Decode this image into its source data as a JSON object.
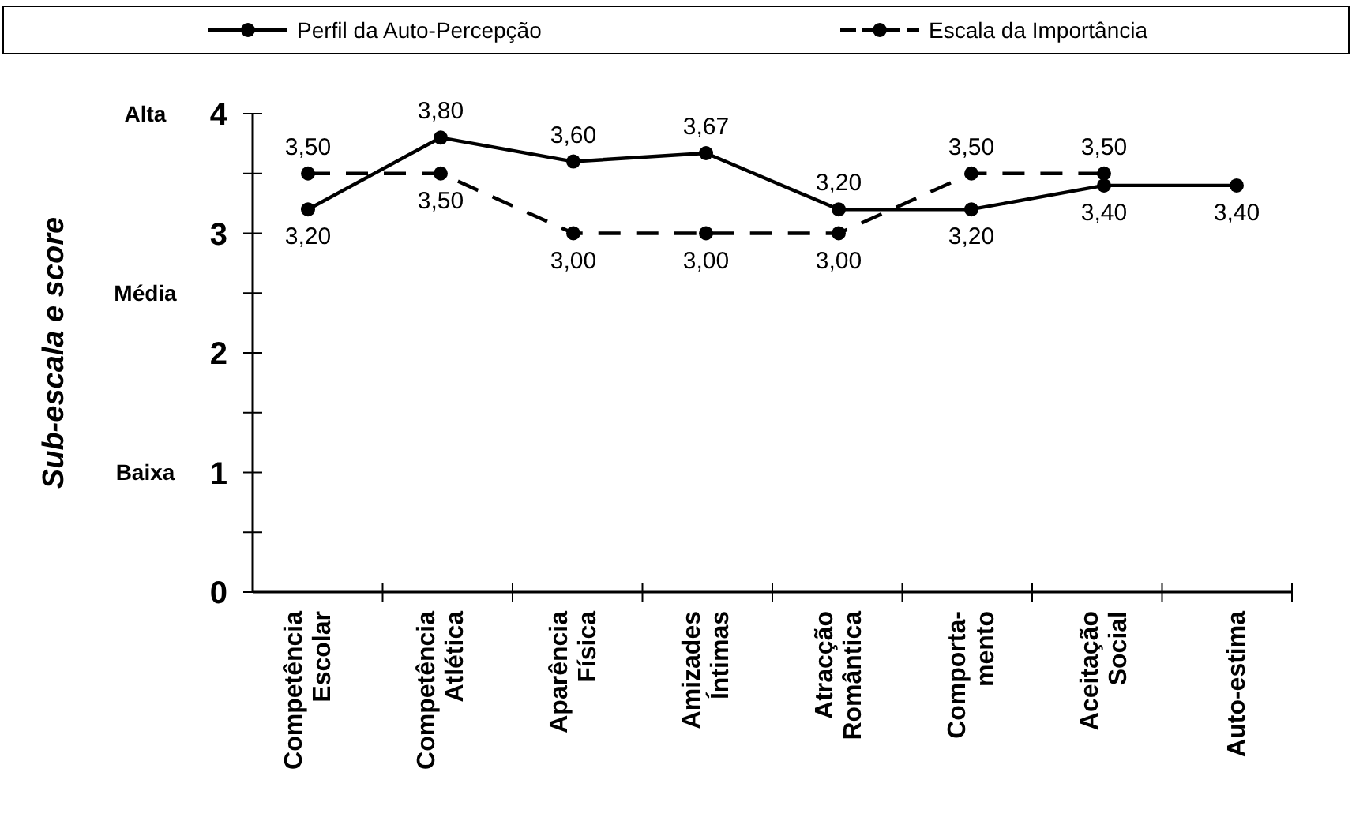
{
  "chart_data": {
    "type": "line",
    "ylabel": "Sub-escala e score",
    "categories": [
      "Competência\nEscolar",
      "Competência\nAtlética",
      "Aparência\nFísica",
      "Amizades\nÍntimas",
      "Atracção\nRomântica",
      "Comporta-\nmento",
      "Aceitação\nSocial",
      "Auto-estima"
    ],
    "series": [
      {
        "name": "Perfil da Auto-Percepção",
        "color": "#000000",
        "line_style": "solid",
        "values": [
          3.2,
          3.8,
          3.6,
          3.67,
          3.2,
          3.2,
          3.4,
          3.4
        ],
        "value_labels": [
          "3,20",
          "3,80",
          "3,60",
          "3,67",
          "3,20",
          "3,20",
          "3,40",
          "3,40"
        ]
      },
      {
        "name": "Escala da Importância",
        "color": "#000000",
        "line_style": "dashed",
        "values": [
          3.5,
          3.5,
          3.0,
          3.0,
          3.0,
          3.5,
          3.5,
          null
        ],
        "value_labels": [
          "3,50",
          "3,50",
          "3,00",
          "3,00",
          "3,00",
          "3,50",
          "3,50",
          null
        ]
      }
    ],
    "ylim": [
      0,
      4
    ],
    "yticks": [
      0,
      {
        "value": 0.5,
        "label": null
      },
      1,
      {
        "value": 1.5,
        "label": null
      },
      2,
      {
        "value": 2.5,
        "label": null
      },
      3,
      {
        "value": 3.5,
        "label": null
      },
      4
    ],
    "annotations": [
      "Alta",
      "Média",
      "Baixa"
    ],
    "marker": "circle",
    "legend": "top",
    "grid": false
  }
}
